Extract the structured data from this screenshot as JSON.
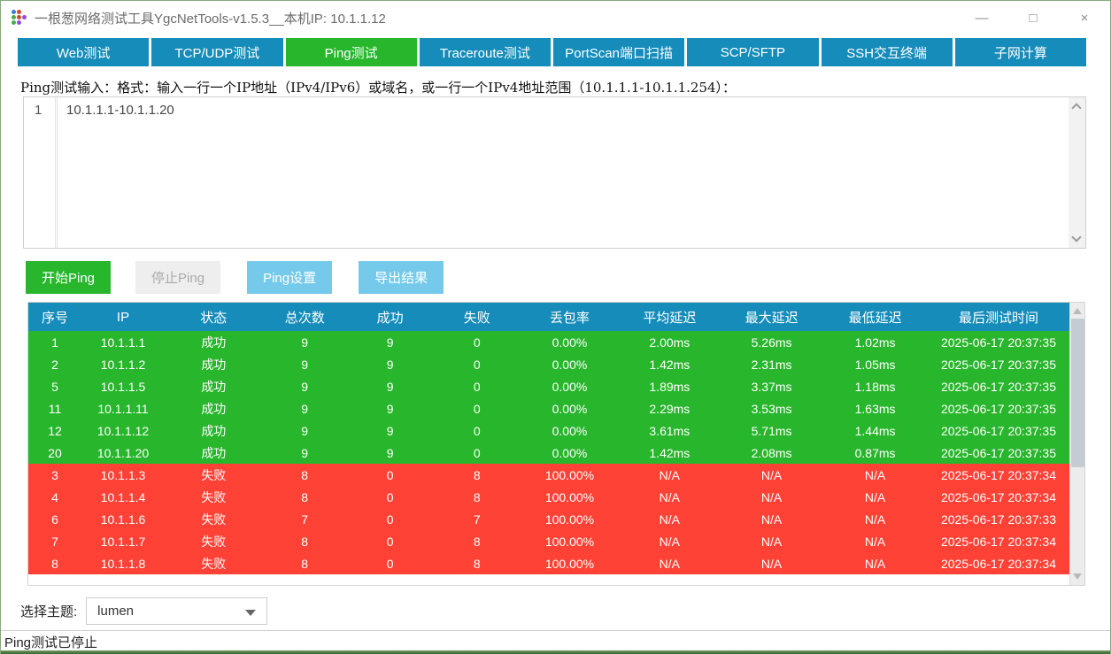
{
  "window": {
    "title": "一根葱网络测试工具YgcNetTools-v1.5.3__本机IP: 10.1.1.12",
    "controls": {
      "minimize": "—",
      "maximize": "□",
      "close": "×"
    }
  },
  "tabs": [
    {
      "id": "web",
      "label": "Web测试",
      "active": false
    },
    {
      "id": "tcpudp",
      "label": "TCP/UDP测试",
      "active": false
    },
    {
      "id": "ping",
      "label": "Ping测试",
      "active": true
    },
    {
      "id": "traceroute",
      "label": "Traceroute测试",
      "active": false
    },
    {
      "id": "portscan",
      "label": "PortScan端口扫描",
      "active": false
    },
    {
      "id": "scpsftp",
      "label": "SCP/SFTP",
      "active": false
    },
    {
      "id": "ssh",
      "label": "SSH交互终端",
      "active": false
    },
    {
      "id": "subnet",
      "label": "子网计算",
      "active": false
    }
  ],
  "ping_panel": {
    "instruction": "Ping测试输入：格式：输入一行一个IP地址（IPv4/IPv6）或域名，或一行一个IPv4地址范围（10.1.1.1-10.1.1.254）：",
    "editor": {
      "line_number": "1",
      "content": "10.1.1.1-10.1.1.20"
    },
    "buttons": {
      "start": {
        "label": "开始Ping",
        "enabled": true
      },
      "stop": {
        "label": "停止Ping",
        "enabled": false
      },
      "settings": {
        "label": "Ping设置",
        "enabled": true
      },
      "export": {
        "label": "导出结果",
        "enabled": true
      }
    }
  },
  "table": {
    "headers": [
      "序号",
      "IP",
      "状态",
      "总次数",
      "成功",
      "失败",
      "丢包率",
      "平均延迟",
      "最大延迟",
      "最低延迟",
      "最后测试时间"
    ],
    "rows": [
      {
        "type": "success",
        "cells": [
          "1",
          "10.1.1.1",
          "成功",
          "9",
          "9",
          "0",
          "0.00%",
          "2.00ms",
          "5.26ms",
          "1.02ms",
          "2025-06-17 20:37:35"
        ]
      },
      {
        "type": "success",
        "cells": [
          "2",
          "10.1.1.2",
          "成功",
          "9",
          "9",
          "0",
          "0.00%",
          "1.42ms",
          "2.31ms",
          "1.05ms",
          "2025-06-17 20:37:35"
        ]
      },
      {
        "type": "success",
        "cells": [
          "5",
          "10.1.1.5",
          "成功",
          "9",
          "9",
          "0",
          "0.00%",
          "1.89ms",
          "3.37ms",
          "1.18ms",
          "2025-06-17 20:37:35"
        ]
      },
      {
        "type": "success",
        "cells": [
          "11",
          "10.1.1.11",
          "成功",
          "9",
          "9",
          "0",
          "0.00%",
          "2.29ms",
          "3.53ms",
          "1.63ms",
          "2025-06-17 20:37:35"
        ]
      },
      {
        "type": "success",
        "cells": [
          "12",
          "10.1.1.12",
          "成功",
          "9",
          "9",
          "0",
          "0.00%",
          "3.61ms",
          "5.71ms",
          "1.44ms",
          "2025-06-17 20:37:35"
        ]
      },
      {
        "type": "success",
        "cells": [
          "20",
          "10.1.1.20",
          "成功",
          "9",
          "9",
          "0",
          "0.00%",
          "1.42ms",
          "2.08ms",
          "0.87ms",
          "2025-06-17 20:37:35"
        ]
      },
      {
        "type": "fail",
        "cells": [
          "3",
          "10.1.1.3",
          "失败",
          "8",
          "0",
          "8",
          "100.00%",
          "N/A",
          "N/A",
          "N/A",
          "2025-06-17 20:37:34"
        ]
      },
      {
        "type": "fail",
        "cells": [
          "4",
          "10.1.1.4",
          "失败",
          "8",
          "0",
          "8",
          "100.00%",
          "N/A",
          "N/A",
          "N/A",
          "2025-06-17 20:37:34"
        ]
      },
      {
        "type": "fail",
        "cells": [
          "6",
          "10.1.1.6",
          "失败",
          "7",
          "0",
          "7",
          "100.00%",
          "N/A",
          "N/A",
          "N/A",
          "2025-06-17 20:37:33"
        ]
      },
      {
        "type": "fail",
        "cells": [
          "7",
          "10.1.1.7",
          "失败",
          "8",
          "0",
          "8",
          "100.00%",
          "N/A",
          "N/A",
          "N/A",
          "2025-06-17 20:37:34"
        ]
      },
      {
        "type": "fail",
        "cells": [
          "8",
          "10.1.1.8",
          "失败",
          "8",
          "0",
          "8",
          "100.00%",
          "N/A",
          "N/A",
          "N/A",
          "2025-06-17 20:37:34"
        ]
      }
    ]
  },
  "theme": {
    "label": "选择主题:",
    "selected": "lumen"
  },
  "status_bar": {
    "text": "Ping测试已停止"
  },
  "colors": {
    "primary": "#158cba",
    "success": "#28b62c",
    "danger": "#ff4136",
    "info": "#75caeb",
    "app_icon_dots": [
      "#3b7dd8",
      "#d9442f",
      "",
      "#45b04a",
      "#d9442f",
      "#8e4fd0",
      "#45b04a",
      "#8e4fd0",
      ""
    ]
  }
}
